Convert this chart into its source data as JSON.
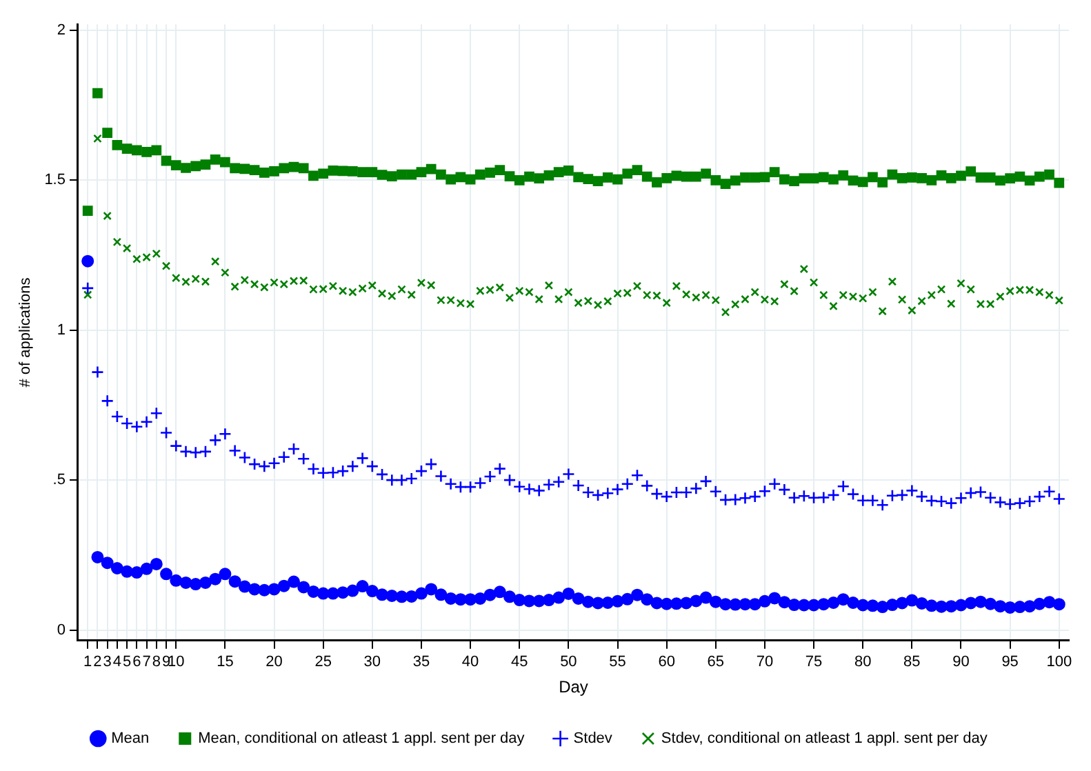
{
  "chart_data": {
    "type": "scatter",
    "xlabel": "Day",
    "ylabel": "# of applications",
    "x": [
      1,
      2,
      3,
      4,
      5,
      6,
      7,
      8,
      9,
      10,
      11,
      12,
      13,
      14,
      15,
      16,
      17,
      18,
      19,
      20,
      21,
      22,
      23,
      24,
      25,
      26,
      27,
      28,
      29,
      30,
      31,
      32,
      33,
      34,
      35,
      36,
      37,
      38,
      39,
      40,
      41,
      42,
      43,
      44,
      45,
      46,
      47,
      48,
      49,
      50,
      51,
      52,
      53,
      54,
      55,
      56,
      57,
      58,
      59,
      60,
      61,
      62,
      63,
      64,
      65,
      66,
      67,
      68,
      69,
      70,
      71,
      72,
      73,
      74,
      75,
      76,
      77,
      78,
      79,
      80,
      81,
      82,
      83,
      84,
      85,
      86,
      87,
      88,
      89,
      90,
      91,
      92,
      93,
      94,
      95,
      96,
      97,
      98,
      99,
      100
    ],
    "xlim": [
      0,
      101
    ],
    "xticks": [
      1,
      2,
      3,
      4,
      5,
      6,
      7,
      8,
      9,
      10,
      15,
      20,
      25,
      30,
      35,
      40,
      45,
      50,
      55,
      60,
      65,
      70,
      75,
      80,
      85,
      90,
      95,
      100
    ],
    "ylim": [
      -0.035,
      2.02
    ],
    "yticks": [
      0,
      {
        "value": 0.5,
        "label": ".5"
      },
      1,
      1.5,
      2
    ],
    "grid": true,
    "legend": "bottom",
    "series": [
      {
        "name": "Mean",
        "color": "#0000ff",
        "marker": "circle",
        "values": [
          1.23,
          0.243,
          0.224,
          0.206,
          0.195,
          0.192,
          0.204,
          0.22,
          0.187,
          0.165,
          0.158,
          0.153,
          0.158,
          0.17,
          0.187,
          0.162,
          0.145,
          0.136,
          0.133,
          0.136,
          0.147,
          0.161,
          0.143,
          0.128,
          0.122,
          0.122,
          0.125,
          0.131,
          0.146,
          0.13,
          0.118,
          0.114,
          0.111,
          0.112,
          0.122,
          0.136,
          0.118,
          0.105,
          0.102,
          0.102,
          0.105,
          0.117,
          0.127,
          0.111,
          0.1,
          0.097,
          0.097,
          0.1,
          0.108,
          0.121,
          0.105,
          0.094,
          0.09,
          0.091,
          0.096,
          0.103,
          0.117,
          0.102,
          0.09,
          0.087,
          0.088,
          0.09,
          0.097,
          0.108,
          0.094,
          0.086,
          0.085,
          0.086,
          0.086,
          0.096,
          0.106,
          0.093,
          0.084,
          0.083,
          0.083,
          0.086,
          0.091,
          0.102,
          0.091,
          0.083,
          0.081,
          0.077,
          0.084,
          0.09,
          0.099,
          0.089,
          0.081,
          0.078,
          0.079,
          0.083,
          0.09,
          0.094,
          0.087,
          0.079,
          0.075,
          0.077,
          0.079,
          0.087,
          0.093,
          0.086
        ]
      },
      {
        "name": "Mean, conditional on atleast 1 appl. sent per day",
        "color": "#007f00",
        "marker": "square",
        "values": [
          1.398,
          1.79,
          1.658,
          1.617,
          1.605,
          1.6,
          1.594,
          1.6,
          1.565,
          1.55,
          1.541,
          1.547,
          1.552,
          1.569,
          1.56,
          1.54,
          1.538,
          1.534,
          1.525,
          1.53,
          1.54,
          1.544,
          1.54,
          1.515,
          1.522,
          1.532,
          1.531,
          1.53,
          1.527,
          1.527,
          1.518,
          1.513,
          1.519,
          1.519,
          1.527,
          1.537,
          1.519,
          1.503,
          1.51,
          1.503,
          1.519,
          1.525,
          1.534,
          1.513,
          1.5,
          1.512,
          1.506,
          1.516,
          1.527,
          1.532,
          1.51,
          1.504,
          1.497,
          1.509,
          1.503,
          1.522,
          1.534,
          1.512,
          1.493,
          1.507,
          1.515,
          1.512,
          1.512,
          1.522,
          1.5,
          1.488,
          1.499,
          1.509,
          1.509,
          1.51,
          1.527,
          1.503,
          1.497,
          1.506,
          1.506,
          1.51,
          1.503,
          1.516,
          1.499,
          1.494,
          1.51,
          1.493,
          1.519,
          1.507,
          1.509,
          1.507,
          1.5,
          1.516,
          1.507,
          1.515,
          1.529,
          1.509,
          1.509,
          1.499,
          1.506,
          1.512,
          1.499,
          1.512,
          1.519,
          1.491
        ]
      },
      {
        "name": "Stdev",
        "color": "#0000ff",
        "marker": "cross",
        "values": [
          1.14,
          0.86,
          0.764,
          0.712,
          0.689,
          0.678,
          0.694,
          0.723,
          0.658,
          0.614,
          0.595,
          0.592,
          0.595,
          0.633,
          0.654,
          0.598,
          0.575,
          0.553,
          0.546,
          0.556,
          0.577,
          0.604,
          0.571,
          0.537,
          0.524,
          0.525,
          0.53,
          0.546,
          0.573,
          0.546,
          0.519,
          0.5,
          0.5,
          0.505,
          0.53,
          0.553,
          0.513,
          0.487,
          0.477,
          0.477,
          0.49,
          0.512,
          0.538,
          0.5,
          0.478,
          0.47,
          0.465,
          0.485,
          0.494,
          0.52,
          0.482,
          0.459,
          0.45,
          0.456,
          0.469,
          0.487,
          0.516,
          0.481,
          0.454,
          0.445,
          0.459,
          0.459,
          0.472,
          0.496,
          0.462,
          0.434,
          0.435,
          0.44,
          0.445,
          0.463,
          0.487,
          0.468,
          0.441,
          0.447,
          0.441,
          0.442,
          0.45,
          0.479,
          0.453,
          0.432,
          0.432,
          0.417,
          0.448,
          0.45,
          0.465,
          0.445,
          0.431,
          0.429,
          0.423,
          0.44,
          0.457,
          0.46,
          0.441,
          0.426,
          0.42,
          0.423,
          0.429,
          0.445,
          0.462,
          0.437
        ]
      },
      {
        "name": "Stdev, conditional on atleast 1 appl. sent per day",
        "color": "#007f00",
        "marker": "x",
        "values": [
          1.118,
          1.639,
          1.381,
          1.294,
          1.273,
          1.237,
          1.243,
          1.255,
          1.214,
          1.174,
          1.161,
          1.171,
          1.162,
          1.229,
          1.192,
          1.145,
          1.167,
          1.153,
          1.143,
          1.159,
          1.153,
          1.164,
          1.165,
          1.136,
          1.137,
          1.147,
          1.131,
          1.127,
          1.139,
          1.149,
          1.122,
          1.114,
          1.136,
          1.118,
          1.158,
          1.15,
          1.1,
          1.1,
          1.09,
          1.087,
          1.131,
          1.134,
          1.142,
          1.108,
          1.131,
          1.127,
          1.103,
          1.149,
          1.103,
          1.127,
          1.091,
          1.097,
          1.084,
          1.096,
          1.122,
          1.124,
          1.147,
          1.117,
          1.115,
          1.091,
          1.147,
          1.119,
          1.109,
          1.117,
          1.1,
          1.06,
          1.086,
          1.103,
          1.127,
          1.102,
          1.096,
          1.153,
          1.13,
          1.204,
          1.159,
          1.117,
          1.08,
          1.117,
          1.112,
          1.106,
          1.127,
          1.063,
          1.162,
          1.102,
          1.066,
          1.097,
          1.117,
          1.136,
          1.088,
          1.156,
          1.136,
          1.087,
          1.087,
          1.112,
          1.13,
          1.134,
          1.134,
          1.127,
          1.117,
          1.099
        ]
      }
    ]
  }
}
